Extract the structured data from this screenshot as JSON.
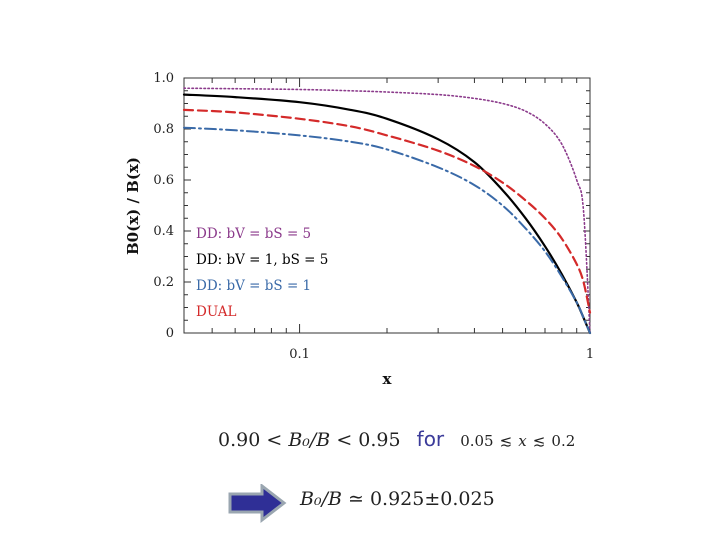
{
  "chart_data": {
    "type": "line",
    "title": "",
    "xlabel": "x",
    "ylabel": "B0(x) / B(x)",
    "xscale": "log",
    "xlim": [
      0.04,
      1
    ],
    "ylim": [
      0,
      1
    ],
    "xticks": [
      {
        "v": 0.1,
        "label": "0.1"
      },
      {
        "v": 1,
        "label": "1"
      }
    ],
    "yticks": [
      {
        "v": 0,
        "label": "0"
      },
      {
        "v": 0.2,
        "label": "0.2"
      },
      {
        "v": 0.4,
        "label": "0.4"
      },
      {
        "v": 0.6,
        "label": "0.6"
      },
      {
        "v": 0.8,
        "label": "0.8"
      },
      {
        "v": 1.0,
        "label": "1.0"
      }
    ],
    "grid": false,
    "legend_position": "bottom-left",
    "series": [
      {
        "name": "DD: bV = bS = 5",
        "color": "#8b3a8b",
        "style": "dotted",
        "x": [
          0.04,
          0.06,
          0.1,
          0.15,
          0.2,
          0.3,
          0.4,
          0.5,
          0.6,
          0.7,
          0.8,
          0.9,
          0.95,
          1.0
        ],
        "y": [
          0.96,
          0.958,
          0.955,
          0.95,
          0.945,
          0.935,
          0.92,
          0.9,
          0.87,
          0.82,
          0.74,
          0.6,
          0.48,
          0.0
        ]
      },
      {
        "name": "DD: bV = 1,  bS = 5",
        "color": "#000000",
        "style": "solid",
        "x": [
          0.04,
          0.06,
          0.1,
          0.15,
          0.2,
          0.3,
          0.4,
          0.5,
          0.6,
          0.7,
          0.8,
          0.9,
          0.95,
          1.0
        ],
        "y": [
          0.935,
          0.925,
          0.905,
          0.875,
          0.84,
          0.76,
          0.67,
          0.56,
          0.45,
          0.34,
          0.23,
          0.12,
          0.06,
          0.0
        ]
      },
      {
        "name": "DD: bV = bS = 1",
        "color": "#3a6aa8",
        "style": "dashdot",
        "x": [
          0.04,
          0.06,
          0.1,
          0.15,
          0.2,
          0.3,
          0.4,
          0.5,
          0.6,
          0.7,
          0.8,
          0.9,
          0.95,
          1.0
        ],
        "y": [
          0.805,
          0.795,
          0.775,
          0.75,
          0.72,
          0.65,
          0.58,
          0.5,
          0.41,
          0.32,
          0.22,
          0.12,
          0.06,
          0.0
        ]
      },
      {
        "name": "DUAL",
        "color": "#d42a2a",
        "style": "dashed",
        "x": [
          0.04,
          0.06,
          0.1,
          0.15,
          0.2,
          0.3,
          0.4,
          0.5,
          0.6,
          0.7,
          0.8,
          0.9,
          0.95,
          1.0
        ],
        "y": [
          0.875,
          0.865,
          0.84,
          0.81,
          0.775,
          0.715,
          0.655,
          0.59,
          0.52,
          0.45,
          0.37,
          0.27,
          0.2,
          0.08
        ]
      }
    ]
  },
  "formulas": {
    "range_lo": "0.90",
    "lt1": "<",
    "ratio": "B₀/B",
    "lt2": "<",
    "range_hi": "0.95",
    "for_word": "for",
    "cond_lo": "0.05",
    "lesssim1": "≲",
    "cond_var": "x",
    "lesssim2": "≲",
    "cond_hi": "0.2",
    "result_lhs": "B₀/B",
    "approx": "≃",
    "result_value": "0.925±0.025"
  },
  "arrow": {
    "fill": "#2f2f96",
    "border": "#9aa6b0"
  }
}
